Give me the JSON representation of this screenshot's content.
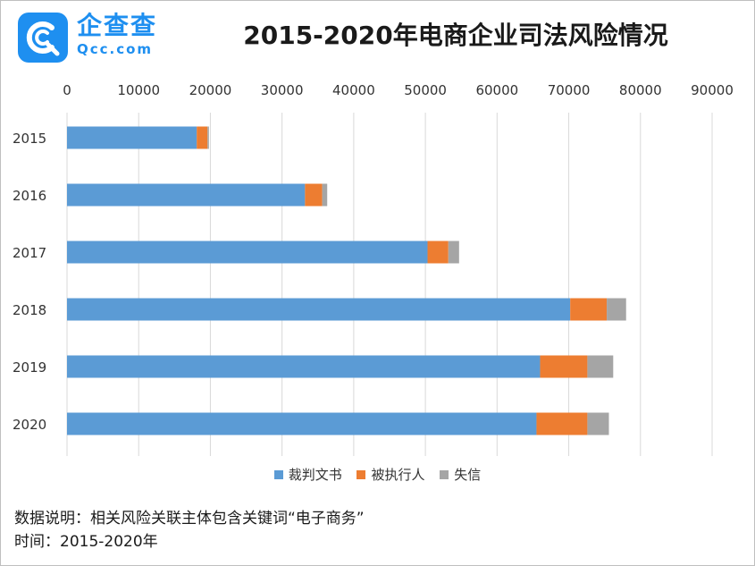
{
  "header": {
    "brand_name": "企查查",
    "brand_url": "Qcc.com",
    "title": "2015-2020年电商企业司法风险情况"
  },
  "colors": {
    "brand": "#1e8ff0",
    "series": [
      "#5b9bd5",
      "#ed7d31",
      "#a5a5a5"
    ],
    "grid": "#d9d9d9"
  },
  "chart_data": {
    "type": "bar",
    "orientation": "horizontal",
    "stacked": true,
    "categories": [
      "2015",
      "2016",
      "2017",
      "2018",
      "2019",
      "2020"
    ],
    "series": [
      {
        "name": "裁判文书",
        "values": [
          18100,
          33200,
          50300,
          70200,
          66000,
          65500
        ]
      },
      {
        "name": "被执行人",
        "values": [
          1500,
          2400,
          2900,
          5100,
          6600,
          7100
        ]
      },
      {
        "name": "失信",
        "values": [
          200,
          700,
          1500,
          2700,
          3600,
          3000
        ]
      }
    ],
    "xlim": [
      0,
      90000
    ],
    "xticks": [
      "0",
      "10000",
      "20000",
      "30000",
      "40000",
      "50000",
      "60000",
      "70000",
      "80000",
      "90000"
    ],
    "grid": true,
    "legend": "bottom"
  },
  "notes": {
    "line1": "数据说明：相关风险关联主体包含关键词“电子商务”",
    "line2": "时间：2015-2020年"
  }
}
